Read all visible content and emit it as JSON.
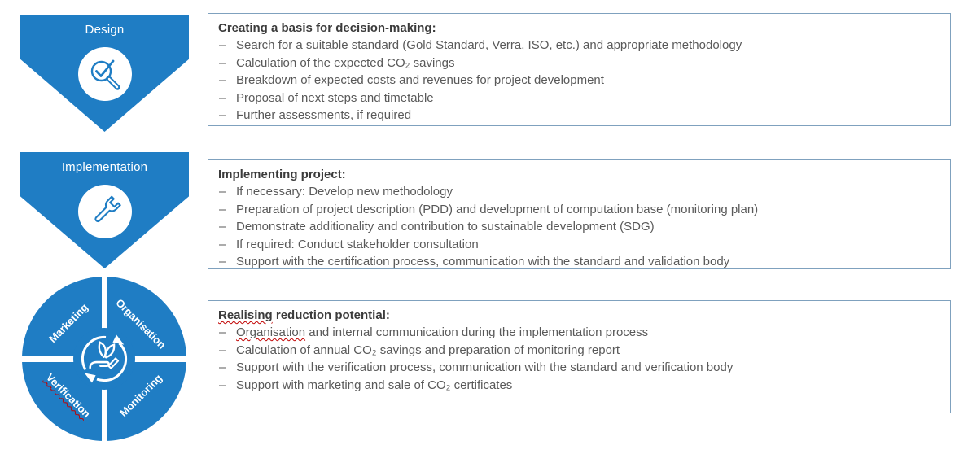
{
  "colors": {
    "blue": "#1F7DC4",
    "box_border": "#7FA1BE",
    "title_text": "#3B3B3B",
    "body_text": "#595959",
    "squiggle_red": "#C00000",
    "icon_stroke_on_white": "#1F7DC4",
    "icon_stroke_on_blue": "#FFFFFF"
  },
  "bullet_marker": "–",
  "stages": [
    {
      "label": "Design",
      "icon": "magnifier-check-icon"
    },
    {
      "label": "Implementation",
      "icon": "wrench-icon"
    }
  ],
  "cycle": {
    "icon": "hand-plant-cycle-icon",
    "quadrants": [
      {
        "label": "Marketing",
        "position": "top-left",
        "squiggle": false
      },
      {
        "label": "Organisation",
        "position": "top-right",
        "squiggle": false
      },
      {
        "label": "Verification",
        "position": "bottom-left",
        "squiggle": true
      },
      {
        "label": "Monitoring",
        "position": "bottom-right",
        "squiggle": false
      }
    ]
  },
  "boxes": [
    {
      "title": {
        "text": "Creating a basis for decision-making:"
      },
      "bullets": [
        {
          "text": "Search for a suitable standard (Gold Standard, Verra, ISO, etc.) and appropriate methodology"
        },
        {
          "text": "Calculation of the expected CO₂ savings"
        },
        {
          "text": "Breakdown of expected costs and revenues for project development"
        },
        {
          "text": "Proposal of next steps and timetable"
        },
        {
          "text": "Further assessments, if required"
        }
      ]
    },
    {
      "title": {
        "text": "Implementing project:"
      },
      "bullets": [
        {
          "text": "If necessary: Develop new methodology"
        },
        {
          "text": "Preparation of project description (PDD) and development of computation base (monitoring plan)"
        },
        {
          "text": "Demonstrate additionality and contribution to sustainable development (SDG)"
        },
        {
          "text": "If required: Conduct stakeholder consultation"
        },
        {
          "text": "Support with the certification process, communication with the standard and validation body"
        }
      ]
    },
    {
      "title": {
        "text": "Realising reduction potential:",
        "squiggle": "Realising"
      },
      "bullets": [
        {
          "text": "Organisation and internal communication during the implementation process",
          "squiggle": "Organisation"
        },
        {
          "text": "Calculation of annual CO₂ savings and preparation of monitoring report"
        },
        {
          "text": "Support with the verification process, communication with the standard and verification body"
        },
        {
          "text": "Support with marketing and sale of CO₂ certificates"
        }
      ]
    }
  ]
}
